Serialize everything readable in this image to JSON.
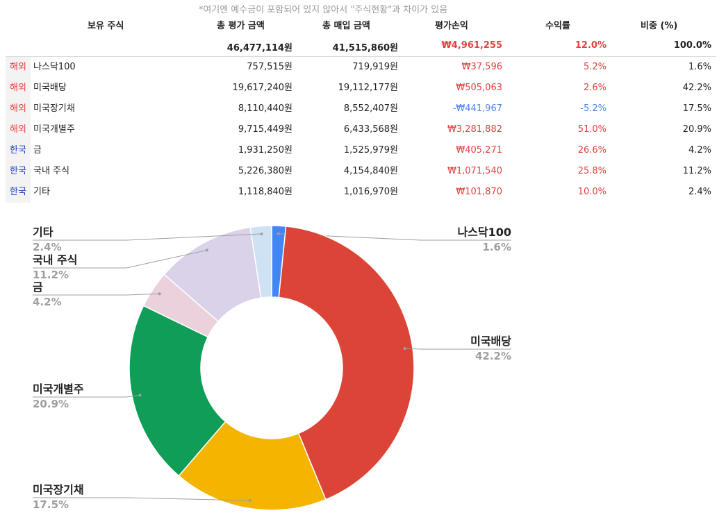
{
  "note": "*여기엔 예수금이 포함되어 있지 않아서 \"주식현황\"과 차이가 있음",
  "headers": {
    "holding": "보유 주식",
    "total_eval": "총 평가 금액",
    "total_purchase": "총 매입 금액",
    "pnl": "평가손익",
    "return": "수익률",
    "weight": "비중 (%)"
  },
  "totals": {
    "total_eval": "46,477,114원",
    "total_purchase": "41,515,860원",
    "pnl": "₩4,961,255",
    "return": "12.0%",
    "weight": "100.0%"
  },
  "rows": [
    {
      "region": "해외",
      "name": "나스닥100",
      "eval": "757,515원",
      "purchase": "719,919원",
      "pnl": "₩37,596",
      "return": "5.2%",
      "weight": "1.6%"
    },
    {
      "region": "해외",
      "name": "미국배당",
      "eval": "19,617,240원",
      "purchase": "19,112,177원",
      "pnl": "₩505,063",
      "return": "2.6%",
      "weight": "42.2%"
    },
    {
      "region": "해외",
      "name": "미국장기채",
      "eval": "8,110,440원",
      "purchase": "8,552,407원",
      "pnl": "-₩441,967",
      "return": "-5.2%",
      "weight": "17.5%"
    },
    {
      "region": "해외",
      "name": "미국개별주",
      "eval": "9,715,449원",
      "purchase": "6,433,568원",
      "pnl": "₩3,281,882",
      "return": "51.0%",
      "weight": "20.9%"
    },
    {
      "region": "한국",
      "name": "금",
      "eval": "1,931,250원",
      "purchase": "1,525,979원",
      "pnl": "₩405,271",
      "return": "26.6%",
      "weight": "4.2%"
    },
    {
      "region": "한국",
      "name": "국내 주식",
      "eval": "5,226,380원",
      "purchase": "4,154,840원",
      "pnl": "₩1,071,540",
      "return": "25.8%",
      "weight": "11.2%"
    },
    {
      "region": "한국",
      "name": "기타",
      "eval": "1,118,840원",
      "purchase": "1,016,970원",
      "pnl": "₩101,870",
      "return": "10.0%",
      "weight": "2.4%"
    }
  ],
  "colors": {
    "overseas_tag": "#e2403e",
    "korea_tag": "#1f3fbf",
    "positive": "#e2403e",
    "negative": "#4a86e8"
  },
  "chart_data": {
    "type": "pie",
    "donut": true,
    "title": "",
    "slices": [
      {
        "label": "나스닥100",
        "value": 1.6,
        "display": "1.6%",
        "color": "#4285f4"
      },
      {
        "label": "미국배당",
        "value": 42.2,
        "display": "42.2%",
        "color": "#db4437"
      },
      {
        "label": "미국장기채",
        "value": 17.5,
        "display": "17.5%",
        "color": "#f4b400"
      },
      {
        "label": "미국개별주",
        "value": 20.9,
        "display": "20.9%",
        "color": "#0f9d58"
      },
      {
        "label": "금",
        "value": 4.2,
        "display": "4.2%",
        "color": "#ead1dc"
      },
      {
        "label": "국내 주식",
        "value": 11.2,
        "display": "11.2%",
        "color": "#d9d2e9"
      },
      {
        "label": "기타",
        "value": 2.4,
        "display": "2.4%",
        "color": "#cfe2f3"
      }
    ]
  }
}
